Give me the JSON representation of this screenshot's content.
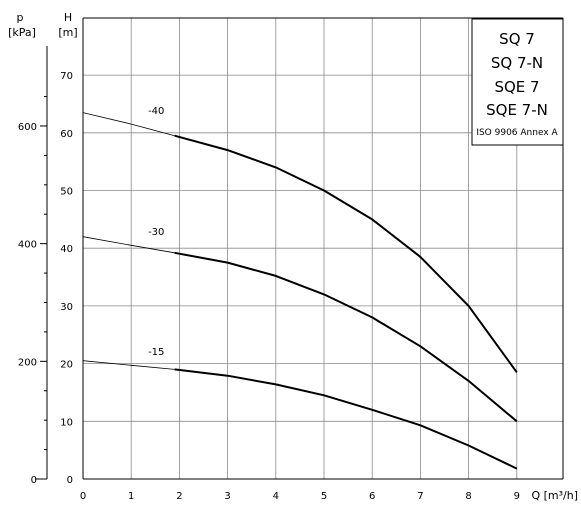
{
  "chart_data": {
    "type": "line",
    "legend": {
      "models": [
        "SQ 7",
        "SQ 7-N",
        "SQE 7",
        "SQE 7-N"
      ],
      "standard": "ISO 9906 Annex A"
    },
    "axes": {
      "p_label": "p",
      "p_unit": "[kPa]",
      "h_label": "H",
      "h_unit": "[m]",
      "x_label": "Q [m³/h]"
    },
    "xlim": [
      0,
      10
    ],
    "ylim_h": [
      0,
      80
    ],
    "x_ticks": [
      "0",
      "1",
      "2",
      "3",
      "4",
      "5",
      "6",
      "7",
      "8",
      "9"
    ],
    "h_ticks": [
      "0",
      "10",
      "20",
      "30",
      "40",
      "50",
      "60",
      "70"
    ],
    "p_ticks": [
      "0",
      "200",
      "400",
      "600"
    ],
    "series": [
      {
        "name": "-40",
        "x": [
          0,
          1,
          1.9,
          3,
          4,
          5,
          6,
          7,
          8,
          9
        ],
        "y": [
          63.5,
          61.5,
          59.5,
          57,
          54,
          50,
          45,
          38.5,
          30,
          18.5
        ],
        "extrap_to": 1.9
      },
      {
        "name": "-30",
        "x": [
          0,
          1,
          1.9,
          3,
          4,
          5,
          6,
          7,
          8,
          9
        ],
        "y": [
          42,
          40.5,
          39.2,
          37.5,
          35.2,
          32,
          28,
          23,
          17,
          10
        ],
        "extrap_to": 1.9
      },
      {
        "name": "-15",
        "x": [
          0,
          1,
          1.9,
          3,
          4,
          5,
          6,
          7,
          8,
          9
        ],
        "y": [
          20.5,
          19.7,
          19,
          17.9,
          16.4,
          14.5,
          12,
          9.3,
          5.8,
          1.8
        ],
        "extrap_to": 1.9
      }
    ]
  }
}
